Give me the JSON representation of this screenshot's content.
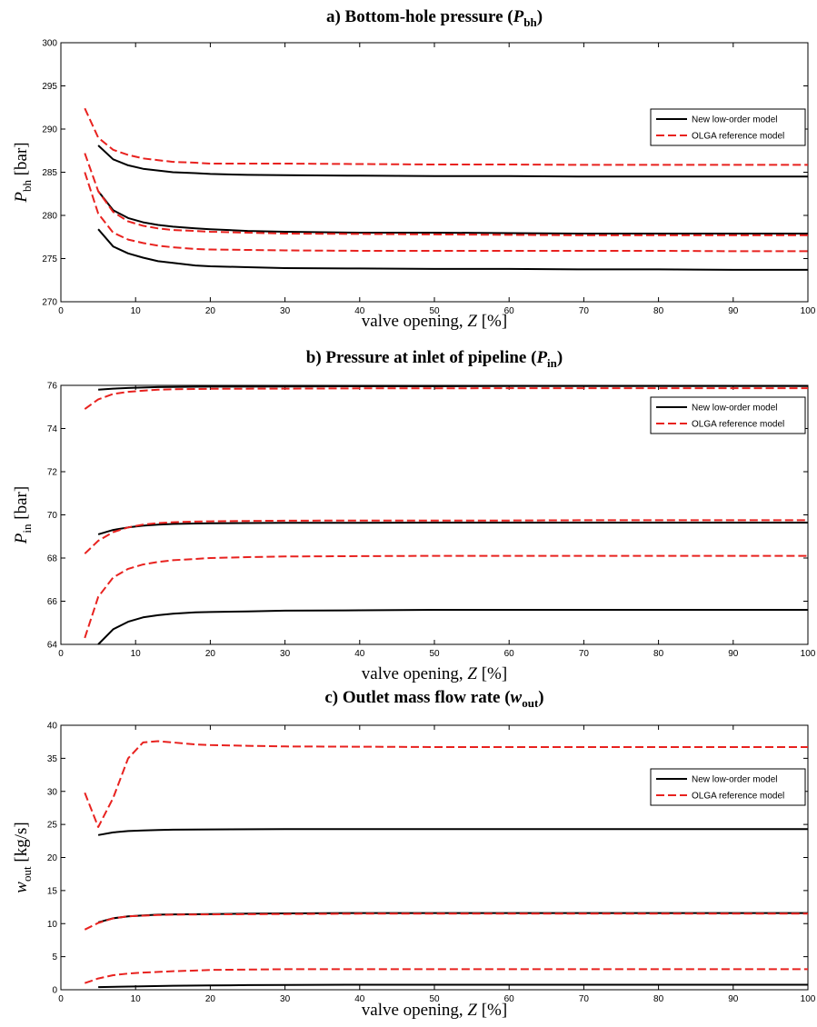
{
  "chart_data": [
    {
      "type": "line",
      "title": "a) Bottom-hole pressure (",
      "title_symbol": "P",
      "title_sub": "bh",
      "title_close": ")",
      "xlabel": "valve opening, ",
      "xlabel_symbol": "Z",
      "xlabel_unit": " [%]",
      "ylabel_symbol": "P",
      "ylabel_sub": "bh",
      "ylabel_unit": " [bar]",
      "xlim": [
        0,
        100
      ],
      "ylim": [
        270,
        300
      ],
      "xticks": [
        0,
        10,
        20,
        30,
        40,
        50,
        60,
        70,
        80,
        90,
        100
      ],
      "yticks": [
        270,
        275,
        280,
        285,
        290,
        295,
        300
      ],
      "grid": false,
      "legend_position": "top-right",
      "legend": [
        "New low-order model",
        "OLGA reference model"
      ],
      "series": [
        {
          "name": "New low-order model",
          "style": "solid",
          "color": "#000000",
          "x": [
            5,
            7,
            9,
            11,
            13,
            15,
            18,
            20,
            25,
            30,
            40,
            50,
            60,
            70,
            80,
            90,
            100
          ],
          "y": [
            288.1,
            286.5,
            285.8,
            285.4,
            285.2,
            285.0,
            284.9,
            284.8,
            284.7,
            284.65,
            284.6,
            284.55,
            284.55,
            284.5,
            284.5,
            284.5,
            284.5
          ]
        },
        {
          "name": "New low-order model",
          "style": "solid",
          "color": "#000000",
          "x": [
            5,
            7,
            9,
            11,
            13,
            15,
            18,
            20,
            25,
            30,
            40,
            50,
            60,
            70,
            80,
            90,
            100
          ],
          "y": [
            282.8,
            280.6,
            279.7,
            279.2,
            278.9,
            278.7,
            278.5,
            278.4,
            278.2,
            278.1,
            278.0,
            278.0,
            277.95,
            277.9,
            277.9,
            277.9,
            277.9
          ]
        },
        {
          "name": "New low-order model",
          "style": "solid",
          "color": "#000000",
          "x": [
            5,
            7,
            9,
            11,
            13,
            15,
            18,
            20,
            25,
            30,
            40,
            50,
            60,
            70,
            80,
            90,
            100
          ],
          "y": [
            278.4,
            276.4,
            275.6,
            275.1,
            274.7,
            274.5,
            274.2,
            274.1,
            274.0,
            273.9,
            273.85,
            273.8,
            273.8,
            273.75,
            273.75,
            273.7,
            273.7
          ]
        },
        {
          "name": "OLGA reference model",
          "style": "dashed",
          "color": "#e8221f",
          "x": [
            3.2,
            5,
            7,
            9,
            11,
            13,
            15,
            18,
            20,
            25,
            30,
            40,
            50,
            60,
            70,
            80,
            90,
            100
          ],
          "y": [
            292.4,
            289.0,
            287.6,
            287.0,
            286.6,
            286.4,
            286.2,
            286.1,
            286.0,
            286.0,
            286.0,
            285.95,
            285.9,
            285.9,
            285.85,
            285.85,
            285.85,
            285.85
          ]
        },
        {
          "name": "OLGA reference model",
          "style": "dashed",
          "color": "#e8221f",
          "x": [
            3.2,
            5,
            7,
            9,
            11,
            13,
            15,
            18,
            20,
            25,
            30,
            40,
            50,
            60,
            70,
            80,
            90,
            100
          ],
          "y": [
            287.2,
            282.8,
            280.4,
            279.3,
            278.8,
            278.5,
            278.3,
            278.2,
            278.1,
            278.0,
            277.9,
            277.85,
            277.8,
            277.75,
            277.7,
            277.7,
            277.7,
            277.7
          ]
        },
        {
          "name": "OLGA reference model",
          "style": "dashed",
          "color": "#e8221f",
          "x": [
            3.2,
            5,
            7,
            9,
            11,
            13,
            15,
            18,
            20,
            25,
            30,
            40,
            50,
            60,
            70,
            80,
            90,
            100
          ],
          "y": [
            285.0,
            280.2,
            278.0,
            277.2,
            276.8,
            276.5,
            276.3,
            276.1,
            276.05,
            276.0,
            275.95,
            275.9,
            275.9,
            275.9,
            275.9,
            275.9,
            275.85,
            275.85
          ]
        }
      ]
    },
    {
      "type": "line",
      "title": "b) Pressure at inlet of pipeline (",
      "title_symbol": "P",
      "title_sub": "in",
      "title_close": ")",
      "xlabel": "valve opening, ",
      "xlabel_symbol": "Z",
      "xlabel_unit": " [%]",
      "ylabel_symbol": "P",
      "ylabel_sub": "in",
      "ylabel_unit": " [bar]",
      "xlim": [
        0,
        100
      ],
      "ylim": [
        64,
        76
      ],
      "xticks": [
        0,
        10,
        20,
        30,
        40,
        50,
        60,
        70,
        80,
        90,
        100
      ],
      "yticks": [
        64,
        66,
        68,
        70,
        72,
        74,
        76
      ],
      "grid": false,
      "legend_position": "top-right",
      "legend": [
        "New low-order model",
        "OLGA reference model"
      ],
      "series": [
        {
          "name": "New low-order model",
          "style": "solid",
          "color": "#000000",
          "x": [
            5,
            7,
            9,
            11,
            13,
            15,
            20,
            30,
            40,
            50,
            60,
            70,
            80,
            90,
            100
          ],
          "y": [
            75.8,
            75.85,
            75.88,
            75.9,
            75.92,
            75.93,
            75.94,
            75.95,
            75.96,
            75.96,
            75.97,
            75.97,
            75.97,
            75.97,
            75.97
          ]
        },
        {
          "name": "New low-order model",
          "style": "solid",
          "color": "#000000",
          "x": [
            5,
            7,
            9,
            11,
            13,
            15,
            18,
            20,
            25,
            30,
            40,
            50,
            60,
            70,
            80,
            90,
            100
          ],
          "y": [
            69.1,
            69.3,
            69.42,
            69.5,
            69.55,
            69.58,
            69.6,
            69.61,
            69.62,
            69.63,
            69.63,
            69.64,
            69.64,
            69.64,
            69.64,
            69.64,
            69.64
          ]
        },
        {
          "name": "New low-order model",
          "style": "solid",
          "color": "#000000",
          "x": [
            5,
            7,
            9,
            11,
            13,
            15,
            18,
            20,
            25,
            30,
            40,
            50,
            60,
            70,
            80,
            90,
            100
          ],
          "y": [
            64.0,
            64.7,
            65.05,
            65.25,
            65.35,
            65.42,
            65.48,
            65.5,
            65.53,
            65.56,
            65.58,
            65.6,
            65.6,
            65.6,
            65.6,
            65.6,
            65.6
          ]
        },
        {
          "name": "OLGA reference model",
          "style": "dashed",
          "color": "#e8221f",
          "x": [
            3.2,
            5,
            7,
            9,
            11,
            13,
            15,
            18,
            20,
            30,
            40,
            50,
            60,
            70,
            80,
            90,
            100
          ],
          "y": [
            74.9,
            75.35,
            75.6,
            75.7,
            75.75,
            75.8,
            75.82,
            75.83,
            75.84,
            75.85,
            75.86,
            75.86,
            75.87,
            75.87,
            75.87,
            75.87,
            75.87
          ]
        },
        {
          "name": "OLGA reference model",
          "style": "dashed",
          "color": "#e8221f",
          "x": [
            3.2,
            5,
            7,
            9,
            11,
            13,
            15,
            18,
            20,
            25,
            30,
            40,
            50,
            60,
            70,
            80,
            90,
            100
          ],
          "y": [
            68.2,
            68.8,
            69.2,
            69.42,
            69.55,
            69.62,
            69.66,
            69.69,
            69.7,
            69.72,
            69.73,
            69.74,
            69.74,
            69.74,
            69.75,
            69.75,
            69.75,
            69.75
          ]
        },
        {
          "name": "OLGA reference model",
          "style": "dashed",
          "color": "#e8221f",
          "x": [
            3.2,
            5,
            7,
            9,
            11,
            13,
            15,
            18,
            20,
            25,
            30,
            40,
            50,
            60,
            70,
            80,
            90,
            100
          ],
          "y": [
            64.3,
            66.2,
            67.1,
            67.5,
            67.7,
            67.82,
            67.9,
            67.96,
            68.0,
            68.04,
            68.07,
            68.09,
            68.1,
            68.1,
            68.1,
            68.1,
            68.1,
            68.1
          ]
        }
      ]
    },
    {
      "type": "line",
      "title": "c) Outlet mass flow rate (",
      "title_symbol": "w",
      "title_sub": "out",
      "title_close": ")",
      "xlabel": "valve opening, ",
      "xlabel_symbol": "Z",
      "xlabel_unit": " [%]",
      "ylabel_symbol": "w",
      "ylabel_sub": "out",
      "ylabel_unit": " [kg/s]",
      "xlim": [
        0,
        100
      ],
      "ylim": [
        0,
        40
      ],
      "xticks": [
        0,
        10,
        20,
        30,
        40,
        50,
        60,
        70,
        80,
        90,
        100
      ],
      "yticks": [
        0,
        5,
        10,
        15,
        20,
        25,
        30,
        35,
        40
      ],
      "grid": false,
      "legend_position": "top-right",
      "legend": [
        "New low-order model",
        "OLGA reference model"
      ],
      "series": [
        {
          "name": "New low-order model",
          "style": "solid",
          "color": "#000000",
          "x": [
            5,
            7,
            9,
            11,
            13,
            15,
            20,
            30,
            40,
            50,
            60,
            70,
            80,
            90,
            100
          ],
          "y": [
            23.4,
            23.8,
            24.0,
            24.1,
            24.15,
            24.2,
            24.25,
            24.3,
            24.3,
            24.3,
            24.3,
            24.3,
            24.3,
            24.3,
            24.3
          ]
        },
        {
          "name": "New low-order model",
          "style": "solid",
          "color": "#000000",
          "x": [
            5,
            7,
            9,
            11,
            13,
            15,
            20,
            25,
            30,
            40,
            50,
            60,
            70,
            80,
            90,
            100
          ],
          "y": [
            10.2,
            10.8,
            11.1,
            11.25,
            11.35,
            11.4,
            11.45,
            11.5,
            11.55,
            11.6,
            11.6,
            11.6,
            11.6,
            11.6,
            11.6,
            11.6
          ]
        },
        {
          "name": "New low-order model",
          "style": "solid",
          "color": "#000000",
          "x": [
            5,
            10,
            15,
            20,
            25,
            30,
            40,
            50,
            60,
            70,
            80,
            90,
            100
          ],
          "y": [
            0.4,
            0.5,
            0.6,
            0.65,
            0.7,
            0.72,
            0.75,
            0.75,
            0.75,
            0.75,
            0.75,
            0.75,
            0.75
          ]
        },
        {
          "name": "OLGA reference model",
          "style": "dashed",
          "color": "#e8221f",
          "x": [
            3.2,
            5,
            7,
            9,
            11,
            13,
            15,
            18,
            20,
            25,
            30,
            40,
            50,
            60,
            70,
            80,
            90,
            100
          ],
          "y": [
            29.8,
            24.6,
            29.0,
            35.0,
            37.4,
            37.6,
            37.4,
            37.1,
            37.0,
            36.9,
            36.8,
            36.75,
            36.7,
            36.7,
            36.7,
            36.7,
            36.7,
            36.7
          ]
        },
        {
          "name": "OLGA reference model",
          "style": "dashed",
          "color": "#e8221f",
          "x": [
            3.2,
            5,
            7,
            9,
            11,
            13,
            15,
            20,
            30,
            40,
            50,
            60,
            70,
            80,
            90,
            100
          ],
          "y": [
            9.1,
            10.1,
            10.8,
            11.1,
            11.2,
            11.3,
            11.35,
            11.4,
            11.45,
            11.5,
            11.5,
            11.5,
            11.5,
            11.5,
            11.5,
            11.5
          ]
        },
        {
          "name": "OLGA reference model",
          "style": "dashed",
          "color": "#e8221f",
          "x": [
            3.2,
            5,
            7,
            9,
            11,
            13,
            15,
            18,
            20,
            25,
            30,
            40,
            50,
            60,
            70,
            80,
            90,
            100
          ],
          "y": [
            1.0,
            1.7,
            2.2,
            2.45,
            2.6,
            2.7,
            2.8,
            2.9,
            3.0,
            3.05,
            3.1,
            3.1,
            3.1,
            3.1,
            3.1,
            3.1,
            3.1,
            3.1
          ]
        }
      ]
    }
  ]
}
